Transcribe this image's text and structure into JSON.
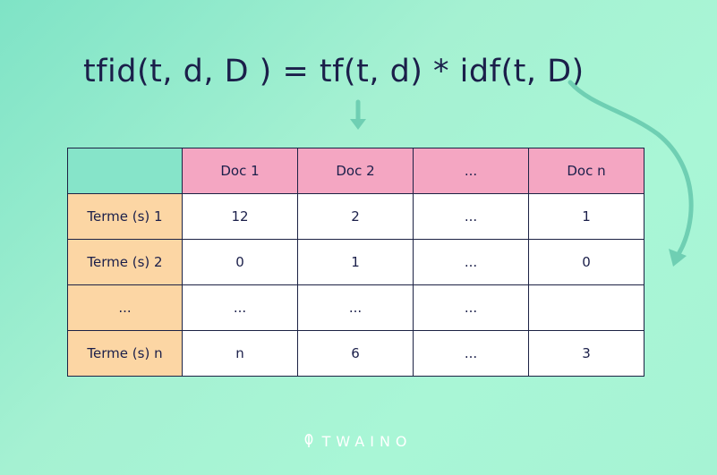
{
  "formula": "tfid(t, d, D ) = tf(t, d)  * idf(t, D)",
  "table": {
    "headers": [
      "Doc 1",
      "Doc 2",
      "...",
      "Doc n"
    ],
    "rows": [
      {
        "label": "Terme (s) 1",
        "cells": [
          "12",
          "2",
          "...",
          "1"
        ]
      },
      {
        "label": "Terme (s) 2",
        "cells": [
          "0",
          "1",
          "...",
          "0"
        ]
      },
      {
        "label": "...",
        "cells": [
          "...",
          "...",
          "...",
          ""
        ]
      },
      {
        "label": "Terme (s) n",
        "cells": [
          "n",
          "6",
          "...",
          "3"
        ]
      }
    ]
  },
  "logo": {
    "icon": "leaf-icon",
    "text": "TWAINO"
  },
  "colors": {
    "background": "#a6f3d4",
    "text": "#1b1f4a",
    "header": "#f4a6c2",
    "row_label": "#fcd6a4",
    "corner": "#86e4c9",
    "arrow": "#6fcfb3"
  }
}
